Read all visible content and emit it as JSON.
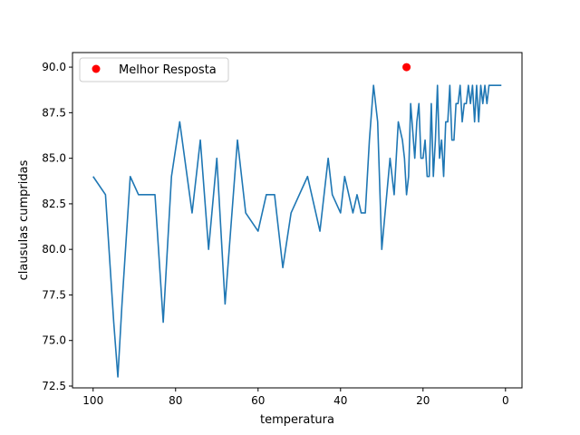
{
  "chart_data": {
    "type": "line",
    "title": "",
    "xlabel": "temperatura",
    "ylabel": "clausulas cumpridas",
    "xlim": [
      105,
      -4
    ],
    "ylim": [
      72.4,
      90.8
    ],
    "x_inverted": true,
    "xticks": [
      100,
      80,
      60,
      40,
      20,
      0
    ],
    "xtick_labels": [
      "100",
      "80",
      "60",
      "40",
      "20",
      "0"
    ],
    "yticks": [
      72.5,
      75.0,
      77.5,
      80.0,
      82.5,
      85.0,
      87.5,
      90.0
    ],
    "ytick_labels": [
      "72.5",
      "75.0",
      "77.5",
      "80.0",
      "82.5",
      "85.0",
      "87.5",
      "90.0"
    ],
    "grid": false,
    "legend_position": "upper-left",
    "series": [
      {
        "kind": "line",
        "color": "#1f77b4",
        "x": [
          100,
          97,
          95,
          94,
          93,
          91,
          89,
          87,
          85,
          83,
          81,
          79,
          76,
          74,
          72,
          70,
          68,
          67,
          65,
          63,
          60,
          58,
          56,
          54,
          52,
          48,
          46,
          45,
          43,
          42,
          40,
          39,
          37,
          36,
          35,
          34,
          33,
          32,
          31,
          30,
          28,
          27,
          26,
          25,
          24.5,
          24,
          23.5,
          23,
          22,
          21.5,
          21,
          20.5,
          20,
          19.5,
          19,
          18.5,
          18,
          17.5,
          17,
          16.5,
          16,
          15.5,
          15,
          14.5,
          14,
          13.5,
          13,
          12.5,
          12,
          11.5,
          11,
          10.5,
          10,
          9.5,
          9,
          8.5,
          8,
          7.5,
          7,
          6.5,
          6,
          5.5,
          5,
          4.5,
          4,
          3.5,
          3,
          1
        ],
        "y": [
          84,
          83,
          76,
          73,
          77,
          84,
          83,
          83,
          83,
          76,
          84,
          87,
          82,
          86,
          80,
          85,
          77,
          80,
          86,
          82,
          81,
          83,
          83,
          79,
          82,
          84,
          82,
          81,
          85,
          83,
          82,
          84,
          82,
          83,
          82,
          82,
          86,
          89,
          87,
          80,
          85,
          83,
          87,
          86,
          85,
          83,
          84,
          88,
          85,
          87,
          88,
          85,
          85,
          86,
          84,
          84,
          88,
          84,
          86,
          89,
          85,
          86,
          84,
          87,
          87,
          89,
          86,
          86,
          88,
          88,
          89,
          87,
          88,
          88,
          89,
          88,
          89,
          87,
          89,
          87,
          89,
          88,
          89,
          88,
          89,
          89,
          89,
          89
        ]
      },
      {
        "kind": "scatter",
        "name": "Melhor Resposta",
        "color": "#ff0000",
        "x": [
          24
        ],
        "y": [
          90
        ]
      }
    ]
  }
}
